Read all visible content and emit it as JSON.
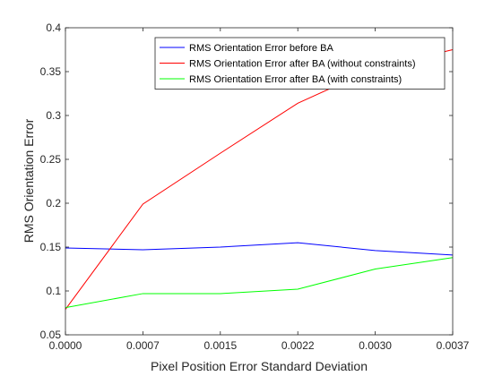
{
  "chart_data": {
    "type": "line",
    "title": "",
    "xlabel": "Pixel Position Error Standard Deviation",
    "ylabel": "RMS Orientation Error",
    "x": [
      0.0,
      0.00074,
      0.00148,
      0.00222,
      0.00296,
      0.0037
    ],
    "xticks": [
      0.0,
      0.00074,
      0.00148,
      0.00222,
      0.00296,
      0.0037
    ],
    "xtick_labels": [
      "0.0000",
      "0.0007",
      "0.0015",
      "0.0022",
      "0.0030",
      "0.0037"
    ],
    "xlim": [
      0.0,
      0.0037
    ],
    "yticks": [
      0.05,
      0.1,
      0.15,
      0.2,
      0.25,
      0.3,
      0.35,
      0.4
    ],
    "ytick_labels": [
      "0.05",
      "0.1",
      "0.15",
      "0.2",
      "0.25",
      "0.3",
      "0.35",
      "0.4"
    ],
    "ylim": [
      0.05,
      0.4
    ],
    "grid": false,
    "legend_position": "top-right",
    "series": [
      {
        "name": "RMS Orientation Error before BA",
        "color": "#0000ff",
        "values": [
          0.149,
          0.147,
          0.15,
          0.155,
          0.146,
          0.141
        ]
      },
      {
        "name": "RMS Orientation Error after BA (without constraints)",
        "color": "#ff0000",
        "values": [
          0.079,
          0.199,
          0.257,
          0.314,
          0.354,
          0.375
        ]
      },
      {
        "name": "RMS Orientation Error after BA (with constraints)",
        "color": "#00ff00",
        "values": [
          0.081,
          0.097,
          0.097,
          0.102,
          0.125,
          0.138
        ]
      }
    ]
  }
}
